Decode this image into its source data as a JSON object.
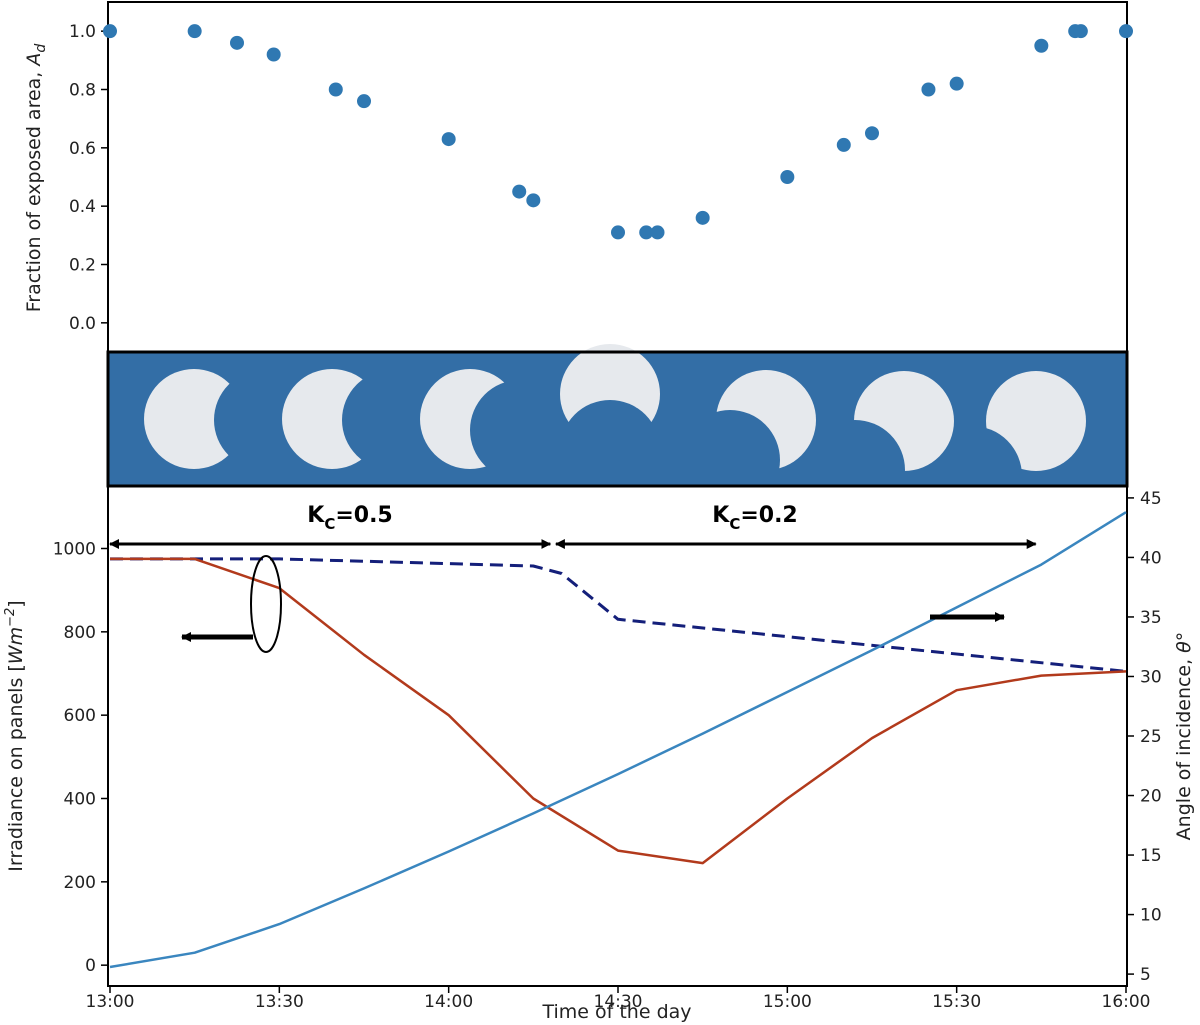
{
  "chart_data": [
    {
      "type": "scatter",
      "panel": "top",
      "ylabel_main": "Fraction of exposed area, ",
      "ylabel_symbol": "A",
      "ylabel_sub": "d",
      "xlim_minutes": [
        0,
        180
      ],
      "ylim": [
        -0.1,
        1.1
      ],
      "yticks": [
        "0.0",
        "0.2",
        "0.4",
        "0.6",
        "0.8",
        "1.0"
      ],
      "ytick_values": [
        0.0,
        0.2,
        0.4,
        0.6,
        0.8,
        1.0
      ],
      "marker_color": "#2f78b2",
      "points_minutes": [
        0,
        15,
        22.5,
        29,
        40,
        45,
        60,
        72.5,
        75,
        90,
        95,
        97,
        105,
        120,
        130,
        135,
        145,
        150,
        165,
        171,
        172,
        180
      ],
      "points_fraction": [
        1.0,
        1.0,
        0.96,
        0.92,
        0.8,
        0.76,
        0.63,
        0.45,
        0.42,
        0.31,
        0.31,
        0.31,
        0.36,
        0.5,
        0.61,
        0.65,
        0.8,
        0.82,
        0.95,
        1.0,
        1.0,
        1.0
      ]
    },
    {
      "type": "image-strip",
      "panel": "middle",
      "background_color": "#336ea6",
      "sun_color": "#e6e9ed",
      "phases": [
        "phase-1",
        "phase-2",
        "phase-3",
        "phase-4",
        "phase-5",
        "phase-6",
        "phase-7"
      ]
    },
    {
      "type": "line",
      "panel": "bottom",
      "xlabel": "Time of the day",
      "xticks": [
        "13:00",
        "13:30",
        "14:00",
        "14:30",
        "15:00",
        "15:30",
        "16:00"
      ],
      "xtick_minutes": [
        0,
        30,
        60,
        90,
        120,
        150,
        180
      ],
      "xlim_minutes": [
        0,
        180
      ],
      "ylabel_left_main": "Irradiance on panels [",
      "ylabel_left_unit": "Wm",
      "ylabel_left_exp": "−2",
      "ylabel_left_close": "]",
      "ylim_left": [
        -50,
        1150
      ],
      "yticks_left": [
        "0",
        "200",
        "400",
        "600",
        "800",
        "1000"
      ],
      "ytick_left_values": [
        0,
        200,
        400,
        600,
        800,
        1000
      ],
      "ylabel_right_main": "Angle of incidence, ",
      "ylabel_right_symbol": "θ°",
      "ylim_right": [
        4,
        46
      ],
      "yticks_right": [
        "5",
        "10",
        "15",
        "20",
        "25",
        "30",
        "35",
        "40",
        "45"
      ],
      "ytick_right_values": [
        5,
        10,
        15,
        20,
        25,
        30,
        35,
        40,
        45
      ],
      "series": [
        {
          "style": "dashed",
          "axis": "left",
          "color": "#141f7a",
          "x_minutes": [
            0,
            15,
            30,
            75,
            80,
            90,
            180
          ],
          "y": [
            975,
            975,
            975,
            958,
            940,
            830,
            705
          ]
        },
        {
          "style": "solid",
          "axis": "left",
          "color": "#b23a1c",
          "x_minutes": [
            0,
            15,
            30,
            45,
            60,
            75,
            90,
            105,
            120,
            135,
            150,
            165,
            180
          ],
          "y": [
            975,
            975,
            905,
            745,
            600,
            400,
            275,
            245,
            400,
            545,
            660,
            695,
            705
          ]
        },
        {
          "style": "solid",
          "axis": "right",
          "color": "#3a86bf",
          "x_minutes": [
            0,
            15,
            30,
            45,
            60,
            75,
            90,
            105,
            120,
            135,
            150,
            165,
            180
          ],
          "y": [
            5.6,
            6.8,
            9.2,
            12.2,
            15.3,
            18.5,
            21.8,
            25.2,
            28.7,
            32.2,
            35.8,
            39.4,
            43.8
          ]
        }
      ],
      "annotations": {
        "kc_left_main": "K",
        "kc_left_sub": "C",
        "kc_left_value": "=0.5",
        "kc_right_main": "K",
        "kc_right_sub": "C",
        "kc_right_value": "=0.2",
        "kc_left_span_minutes": [
          0,
          78
        ],
        "kc_right_span_minutes": [
          79,
          164
        ]
      }
    }
  ]
}
